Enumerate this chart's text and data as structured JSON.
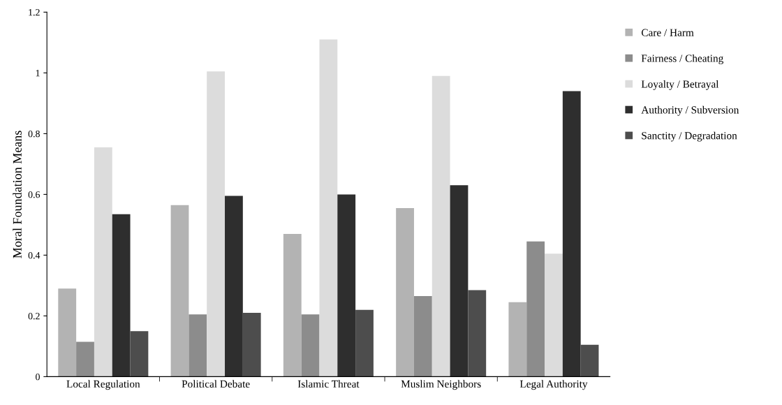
{
  "chart_data": {
    "type": "bar",
    "ylabel": "Moral Foundation Means",
    "categories": [
      "Local Regulation",
      "Political Debate",
      "Islamic Threat",
      "Muslim Neighbors",
      "Legal Authority"
    ],
    "series": [
      {
        "name": "Care / Harm",
        "color": "#b3b3b3",
        "values": [
          0.29,
          0.565,
          0.47,
          0.555,
          0.245
        ]
      },
      {
        "name": "Fairness / Cheating",
        "color": "#8c8c8c",
        "values": [
          0.115,
          0.205,
          0.205,
          0.265,
          0.445
        ]
      },
      {
        "name": "Loyalty / Betrayal",
        "color": "#dcdcdc",
        "values": [
          0.755,
          1.005,
          1.11,
          0.99,
          0.405
        ]
      },
      {
        "name": "Authority / Subversion",
        "color": "#2e2e2e",
        "values": [
          0.535,
          0.595,
          0.6,
          0.63,
          0.94
        ]
      },
      {
        "name": "Sanctity / Degradation",
        "color": "#4d4d4d",
        "values": [
          0.15,
          0.21,
          0.22,
          0.285,
          0.105
        ]
      }
    ],
    "ylim": [
      0,
      1.2
    ],
    "yticks": [
      0,
      0.2,
      0.4,
      0.6,
      0.8,
      1,
      1.2
    ],
    "grid": false,
    "legend": "right"
  }
}
